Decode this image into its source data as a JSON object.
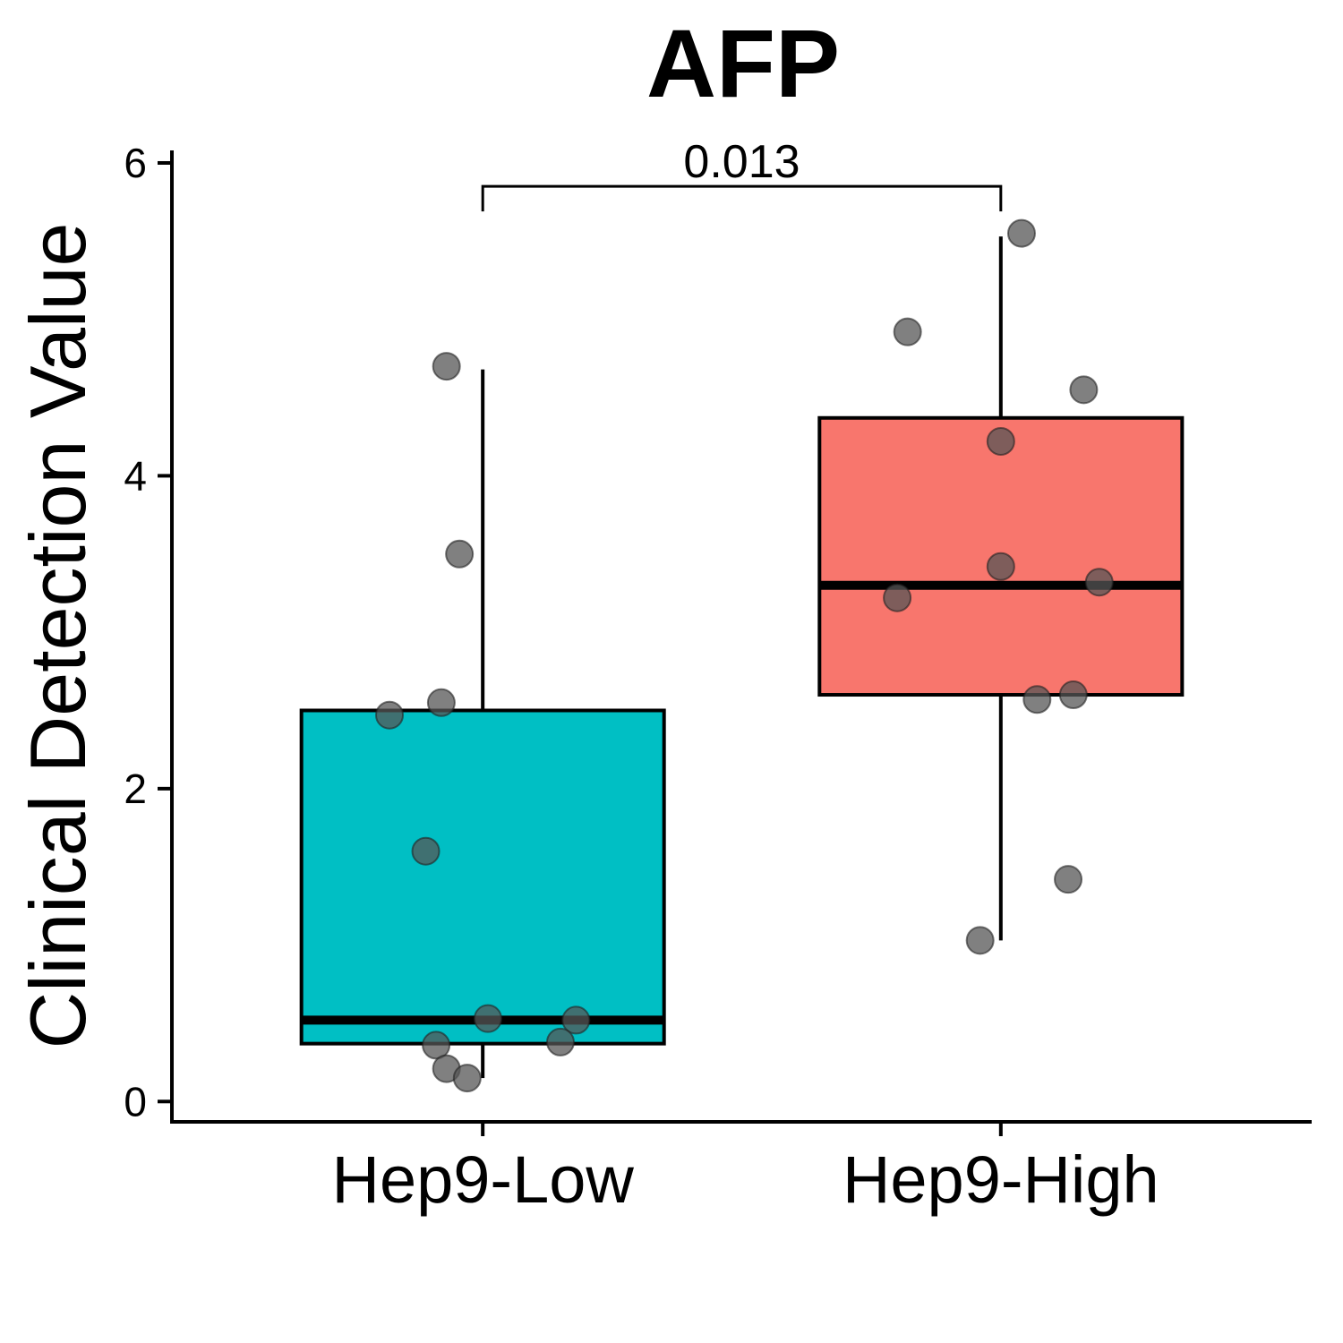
{
  "chart_data": {
    "type": "box",
    "title": "AFP",
    "xlabel": "",
    "ylabel": "Clinical Detection Value",
    "ylim": [
      -0.13,
      6.08
    ],
    "yticks": [
      0,
      2,
      4,
      6
    ],
    "grid": false,
    "legend": "none",
    "categories": [
      "Hep9-Low",
      "Hep9-High"
    ],
    "boxes": [
      {
        "category": "Hep9-Low",
        "color": "#00BFC4",
        "whisker_low": 0.15,
        "q1": 0.37,
        "median": 0.52,
        "q3": 2.5,
        "whisker_high": 4.68,
        "points": [
          {
            "offset": -0.07,
            "y": 4.7
          },
          {
            "offset": -0.045,
            "y": 3.5
          },
          {
            "offset": -0.18,
            "y": 2.47
          },
          {
            "offset": -0.08,
            "y": 2.55
          },
          {
            "offset": -0.11,
            "y": 1.6
          },
          {
            "offset": 0.01,
            "y": 0.53
          },
          {
            "offset": 0.18,
            "y": 0.52
          },
          {
            "offset": -0.09,
            "y": 0.36
          },
          {
            "offset": 0.15,
            "y": 0.38
          },
          {
            "offset": -0.07,
            "y": 0.21
          },
          {
            "offset": -0.03,
            "y": 0.15
          }
        ]
      },
      {
        "category": "Hep9-High",
        "color": "#F8766D",
        "whisker_low": 1.03,
        "q1": 2.6,
        "median": 3.3,
        "q3": 4.37,
        "whisker_high": 5.53,
        "points": [
          {
            "offset": 0.04,
            "y": 5.55
          },
          {
            "offset": -0.18,
            "y": 4.92
          },
          {
            "offset": 0.16,
            "y": 4.55
          },
          {
            "offset": 0.0,
            "y": 4.22
          },
          {
            "offset": 0.0,
            "y": 3.42
          },
          {
            "offset": -0.2,
            "y": 3.22
          },
          {
            "offset": 0.19,
            "y": 3.32
          },
          {
            "offset": 0.07,
            "y": 2.57
          },
          {
            "offset": 0.14,
            "y": 2.6
          },
          {
            "offset": 0.13,
            "y": 1.42
          },
          {
            "offset": -0.04,
            "y": 1.03
          }
        ]
      }
    ],
    "comparison": {
      "groups": [
        "Hep9-Low",
        "Hep9-High"
      ],
      "label": "0.013",
      "y": 5.85
    },
    "point_color": "#555555"
  }
}
